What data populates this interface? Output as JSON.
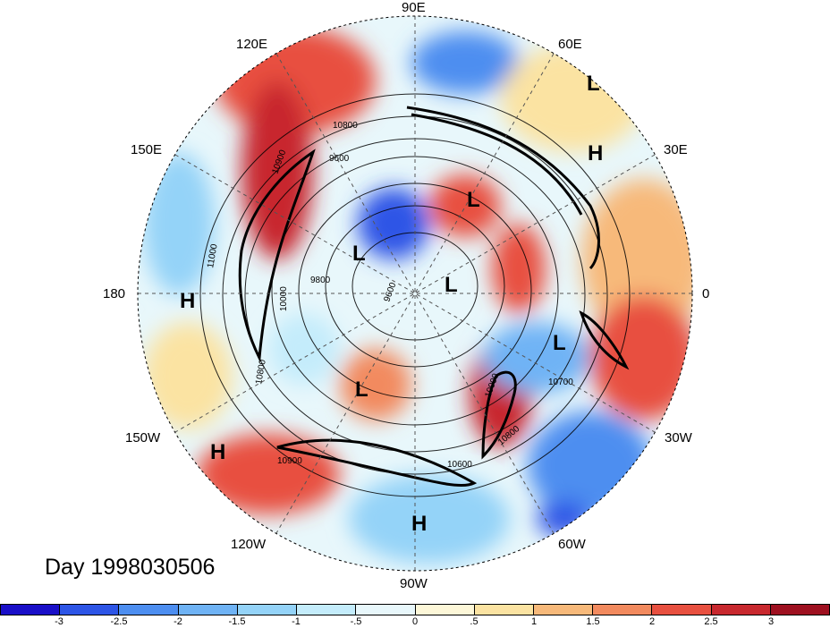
{
  "title": "Day 1998030506",
  "longitude_labels": [
    "90E",
    "60E",
    "30E",
    "0",
    "30W",
    "60W",
    "90W",
    "120W",
    "150W",
    "180",
    "150E",
    "120E"
  ],
  "pressure_centers": [
    "L",
    "H",
    "L",
    "L",
    "L",
    "L",
    "L",
    "H",
    "H",
    "H"
  ],
  "contour_labels": [
    "10800",
    "9600",
    "10900",
    "11000",
    "10000",
    "9800",
    "9600",
    "10000",
    "10700",
    "10800",
    "10900",
    "10600",
    "10800"
  ],
  "colorbar": {
    "ticks": [
      "-3",
      "-2.5",
      "-2",
      "-1.5",
      "-1",
      "-.5",
      "0",
      ".5",
      "1",
      "1.5",
      "2",
      "2.5",
      "3"
    ],
    "colors": [
      "#1a0fc8",
      "#2d55e6",
      "#4d8ef0",
      "#6fb3f5",
      "#94d3f8",
      "#c4ecfb",
      "#e8f7fb",
      "#fdf7d8",
      "#fbe3a2",
      "#f7b97a",
      "#f28a5e",
      "#e85040",
      "#c8282e",
      "#9e1020"
    ]
  }
}
